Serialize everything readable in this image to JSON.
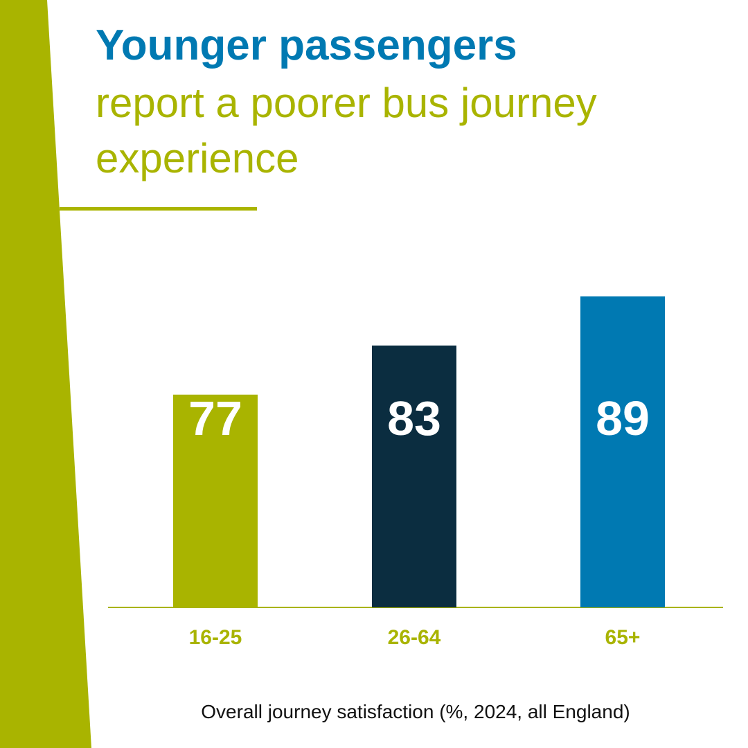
{
  "colors": {
    "accent_green": "#a9b400",
    "accent_blue": "#0079b2",
    "dark_navy": "#0b2d40",
    "bar_label": "#ffffff",
    "caption": "#111111"
  },
  "title": {
    "bold": "Younger passengers",
    "line2": "report a poorer bus journey",
    "line3": "experience"
  },
  "caption": "Overall journey satisfaction (%, 2024, all England)",
  "chart_data": {
    "type": "bar",
    "title": "Younger passengers report a poorer bus journey experience",
    "categories": [
      "16-25",
      "26-64",
      "65+"
    ],
    "values": [
      77,
      83,
      89
    ],
    "data_labels": [
      "77",
      "83",
      "89"
    ],
    "bar_colors": [
      "#a9b400",
      "#0b2d40",
      "#0079b2"
    ],
    "ylim": [
      51,
      100
    ],
    "grid": false,
    "xlabel": "",
    "ylabel": ""
  }
}
